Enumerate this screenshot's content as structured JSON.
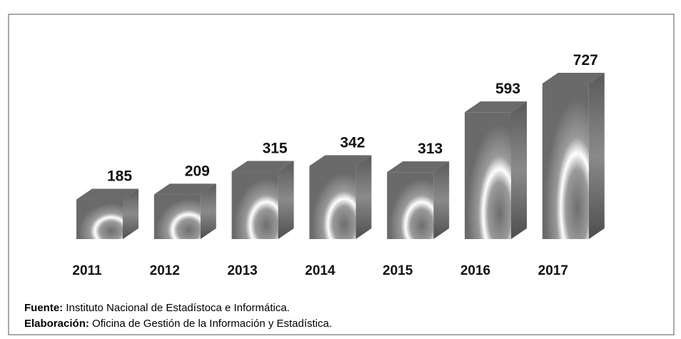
{
  "chart_data": {
    "type": "bar3d",
    "categories": [
      "2011",
      "2012",
      "2013",
      "2014",
      "2015",
      "2016",
      "2017"
    ],
    "values": [
      185,
      209,
      315,
      342,
      313,
      593,
      727
    ],
    "color": "#7a7a7a",
    "source_label": "Fuente:",
    "source_text": " Instituto Nacional de Estadístoca e Informática.",
    "credit_label": "Elaboración:",
    "credit_text": " Oficina de Gestión de la Información y Estadística."
  }
}
